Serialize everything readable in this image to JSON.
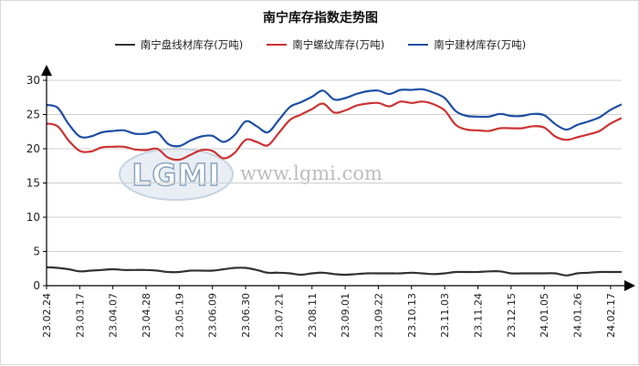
{
  "chart_data": {
    "type": "line",
    "title": "南宁库存指数走势图",
    "xlabel": "",
    "ylabel": "",
    "ylim": [
      0,
      30
    ],
    "yticks": [
      0,
      5,
      10,
      15,
      20,
      25,
      30
    ],
    "grid": "y-major",
    "legend_position": "top",
    "watermark": {
      "logo": "LGMI",
      "url": "www.lgmi.com"
    },
    "x": [
      "23.02.24",
      "23.03.03",
      "23.03.10",
      "23.03.17",
      "23.03.24",
      "23.03.31",
      "23.04.07",
      "23.04.14",
      "23.04.21",
      "23.04.28",
      "23.05.05",
      "23.05.12",
      "23.05.19",
      "23.05.26",
      "23.06.02",
      "23.06.09",
      "23.06.16",
      "23.06.23",
      "23.06.30",
      "23.07.07",
      "23.07.14",
      "23.07.21",
      "23.07.28",
      "23.08.04",
      "23.08.11",
      "23.08.18",
      "23.08.25",
      "23.09.01",
      "23.09.08",
      "23.09.15",
      "23.09.22",
      "23.09.29",
      "23.10.06",
      "23.10.13",
      "23.10.20",
      "23.10.27",
      "23.11.03",
      "23.11.10",
      "23.11.17",
      "23.11.24",
      "23.12.01",
      "23.12.08",
      "23.12.15",
      "23.12.22",
      "23.12.29",
      "24.01.05",
      "24.01.12",
      "24.01.19",
      "24.01.26",
      "24.02.02",
      "24.02.09",
      "24.02.17",
      "24.02.24"
    ],
    "x_tick_labels": [
      "23.02.24",
      "23.03.17",
      "23.04.07",
      "23.04.28",
      "23.05.19",
      "23.06.09",
      "23.06.30",
      "23.07.21",
      "23.08.11",
      "23.09.01",
      "23.09.22",
      "23.10.13",
      "23.11.03",
      "23.11.24",
      "23.12.15",
      "24.01.05",
      "24.01.26",
      "24.02.17"
    ],
    "series": [
      {
        "name": "南宁盘线材库存(万吨)",
        "color": "#333333",
        "values": [
          2.7,
          2.6,
          2.4,
          2.1,
          2.2,
          2.3,
          2.4,
          2.3,
          2.3,
          2.3,
          2.2,
          2.0,
          2.0,
          2.2,
          2.2,
          2.2,
          2.4,
          2.6,
          2.6,
          2.3,
          1.9,
          1.9,
          1.8,
          1.6,
          1.8,
          1.9,
          1.7,
          1.6,
          1.7,
          1.8,
          1.8,
          1.8,
          1.8,
          1.9,
          1.8,
          1.7,
          1.8,
          2.0,
          2.0,
          2.0,
          2.1,
          2.1,
          1.8,
          1.8,
          1.8,
          1.8,
          1.8,
          1.5,
          1.8,
          1.9,
          2.0,
          2.0,
          2.0
        ]
      },
      {
        "name": "南宁螺纹库存(万吨)",
        "color": "#cc3333",
        "values": [
          23.7,
          23.3,
          21.2,
          19.7,
          19.6,
          20.2,
          20.3,
          20.3,
          19.9,
          19.8,
          20.0,
          18.7,
          18.4,
          19.1,
          19.8,
          19.7,
          18.6,
          19.4,
          21.3,
          21.0,
          20.5,
          22.3,
          24.2,
          25.0,
          25.8,
          26.6,
          25.3,
          25.6,
          26.3,
          26.6,
          26.7,
          26.2,
          26.9,
          26.7,
          26.9,
          26.5,
          25.6,
          23.5,
          22.8,
          22.7,
          22.6,
          23.0,
          23.0,
          23.0,
          23.3,
          23.1,
          21.8,
          21.3,
          21.7,
          22.1,
          22.6,
          23.7,
          24.5
        ]
      },
      {
        "name": "南宁建材库存(万吨)",
        "color": "#1f4fa3",
        "values": [
          26.4,
          26.0,
          23.6,
          21.8,
          21.8,
          22.4,
          22.6,
          22.7,
          22.2,
          22.2,
          22.4,
          20.7,
          20.4,
          21.2,
          21.8,
          21.9,
          21.0,
          22.0,
          24.0,
          23.3,
          22.4,
          24.2,
          26.1,
          26.8,
          27.6,
          28.5,
          27.2,
          27.4,
          28.0,
          28.4,
          28.5,
          28.0,
          28.6,
          28.6,
          28.7,
          28.2,
          27.4,
          25.5,
          24.8,
          24.7,
          24.7,
          25.1,
          24.8,
          24.8,
          25.1,
          24.9,
          23.6,
          22.8,
          23.5,
          24.0,
          24.6,
          25.7,
          26.5
        ]
      }
    ]
  }
}
